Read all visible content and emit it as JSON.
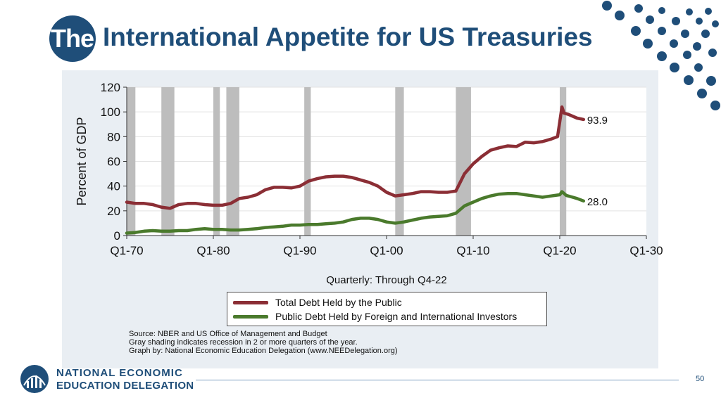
{
  "slide": {
    "title_prefix": "The",
    "title_rest": "International Appetite for US Treasuries",
    "brand_color": "#1f4e79",
    "page_number": "50"
  },
  "footer": {
    "org_line1": "NATIONAL ECONOMIC",
    "org_line2": "EDUCATION DELEGATION"
  },
  "notes": {
    "source": "Source: NBER and US Office of Management and Budget",
    "shading": "Gray shading indicates recession in 2 or more quarters of the year.",
    "graph_by": "Graph by: National Economic Education Delegation (www.NEEDelegation.org)"
  },
  "chart_data": {
    "type": "line",
    "title": "",
    "xlabel": "Quarterly: Through Q4-22",
    "ylabel": "Percent of GDP",
    "xlim": [
      1970,
      2030
    ],
    "ylim": [
      0,
      120
    ],
    "x_ticks": [
      {
        "value": 1970,
        "label": "Q1-70"
      },
      {
        "value": 1980,
        "label": "Q1-80"
      },
      {
        "value": 1990,
        "label": "Q1-90"
      },
      {
        "value": 2000,
        "label": "Q1-00"
      },
      {
        "value": 2010,
        "label": "Q1-10"
      },
      {
        "value": 2020,
        "label": "Q1-20"
      },
      {
        "value": 2030,
        "label": "Q1-30"
      }
    ],
    "y_ticks": [
      0,
      20,
      40,
      60,
      80,
      100,
      120
    ],
    "grid": true,
    "legend_position": "bottom",
    "recessions": [
      [
        1970,
        1971
      ],
      [
        1974,
        1975.5
      ],
      [
        1980,
        1980.75
      ],
      [
        1981.5,
        1983
      ],
      [
        1990.5,
        1991.25
      ],
      [
        2001,
        2002
      ],
      [
        2008,
        2009.75
      ],
      [
        2020,
        2020.75
      ]
    ],
    "recession_color": "#bdbdbd",
    "series": [
      {
        "name": "Total Debt Held by the Public",
        "color": "#8b2e35",
        "end_label": "93.9",
        "points": [
          [
            1970,
            27
          ],
          [
            1971,
            26
          ],
          [
            1972,
            26
          ],
          [
            1973,
            25
          ],
          [
            1974,
            23
          ],
          [
            1975,
            22
          ],
          [
            1976,
            25
          ],
          [
            1977,
            26
          ],
          [
            1978,
            26
          ],
          [
            1979,
            25
          ],
          [
            1980,
            24.5
          ],
          [
            1981,
            24.5
          ],
          [
            1982,
            26
          ],
          [
            1983,
            30
          ],
          [
            1984,
            31
          ],
          [
            1985,
            33
          ],
          [
            1986,
            37
          ],
          [
            1987,
            39
          ],
          [
            1988,
            39
          ],
          [
            1989,
            38.5
          ],
          [
            1990,
            40
          ],
          [
            1991,
            44
          ],
          [
            1992,
            46
          ],
          [
            1993,
            47.5
          ],
          [
            1994,
            48
          ],
          [
            1995,
            48
          ],
          [
            1996,
            47
          ],
          [
            1997,
            45
          ],
          [
            1998,
            43
          ],
          [
            1999,
            40
          ],
          [
            2000,
            35
          ],
          [
            2001,
            32
          ],
          [
            2002,
            33
          ],
          [
            2003,
            34
          ],
          [
            2004,
            35.5
          ],
          [
            2005,
            35.5
          ],
          [
            2006,
            35
          ],
          [
            2007,
            35
          ],
          [
            2008,
            36
          ],
          [
            2009,
            50
          ],
          [
            2010,
            58
          ],
          [
            2011,
            64
          ],
          [
            2012,
            69
          ],
          [
            2013,
            71
          ],
          [
            2014,
            72.5
          ],
          [
            2015,
            72
          ],
          [
            2016,
            75.5
          ],
          [
            2017,
            75
          ],
          [
            2018,
            76
          ],
          [
            2019,
            78
          ],
          [
            2019.75,
            80
          ],
          [
            2020.25,
            104
          ],
          [
            2020.5,
            99
          ],
          [
            2021,
            98
          ],
          [
            2022,
            95
          ],
          [
            2022.75,
            93.9
          ]
        ]
      },
      {
        "name": "Public Debt Held by Foreign and International Investors",
        "color": "#4a7a2c",
        "end_label": "28.0",
        "points": [
          [
            1970,
            2
          ],
          [
            1971,
            2.5
          ],
          [
            1972,
            3.5
          ],
          [
            1973,
            4
          ],
          [
            1974,
            3.5
          ],
          [
            1975,
            3.5
          ],
          [
            1976,
            4
          ],
          [
            1977,
            4
          ],
          [
            1978,
            5
          ],
          [
            1979,
            5.5
          ],
          [
            1980,
            5
          ],
          [
            1981,
            5
          ],
          [
            1982,
            4.5
          ],
          [
            1983,
            4.5
          ],
          [
            1984,
            5
          ],
          [
            1985,
            5.5
          ],
          [
            1986,
            6.5
          ],
          [
            1987,
            7
          ],
          [
            1988,
            7.5
          ],
          [
            1989,
            8.5
          ],
          [
            1990,
            8.5
          ],
          [
            1991,
            9
          ],
          [
            1992,
            9
          ],
          [
            1993,
            9.5
          ],
          [
            1994,
            10
          ],
          [
            1995,
            11
          ],
          [
            1996,
            13
          ],
          [
            1997,
            14
          ],
          [
            1998,
            14
          ],
          [
            1999,
            13
          ],
          [
            2000,
            11
          ],
          [
            2001,
            10
          ],
          [
            2002,
            11
          ],
          [
            2003,
            12.5
          ],
          [
            2004,
            14
          ],
          [
            2005,
            15
          ],
          [
            2006,
            15.5
          ],
          [
            2007,
            16
          ],
          [
            2008,
            18
          ],
          [
            2009,
            24
          ],
          [
            2010,
            27
          ],
          [
            2011,
            30
          ],
          [
            2012,
            32
          ],
          [
            2013,
            33.5
          ],
          [
            2014,
            34
          ],
          [
            2015,
            34
          ],
          [
            2016,
            33
          ],
          [
            2017,
            32
          ],
          [
            2018,
            31
          ],
          [
            2019,
            32
          ],
          [
            2020,
            33
          ],
          [
            2020.25,
            35.5
          ],
          [
            2020.75,
            32.5
          ],
          [
            2021.5,
            31
          ],
          [
            2022,
            30
          ],
          [
            2022.75,
            28
          ]
        ]
      }
    ]
  }
}
